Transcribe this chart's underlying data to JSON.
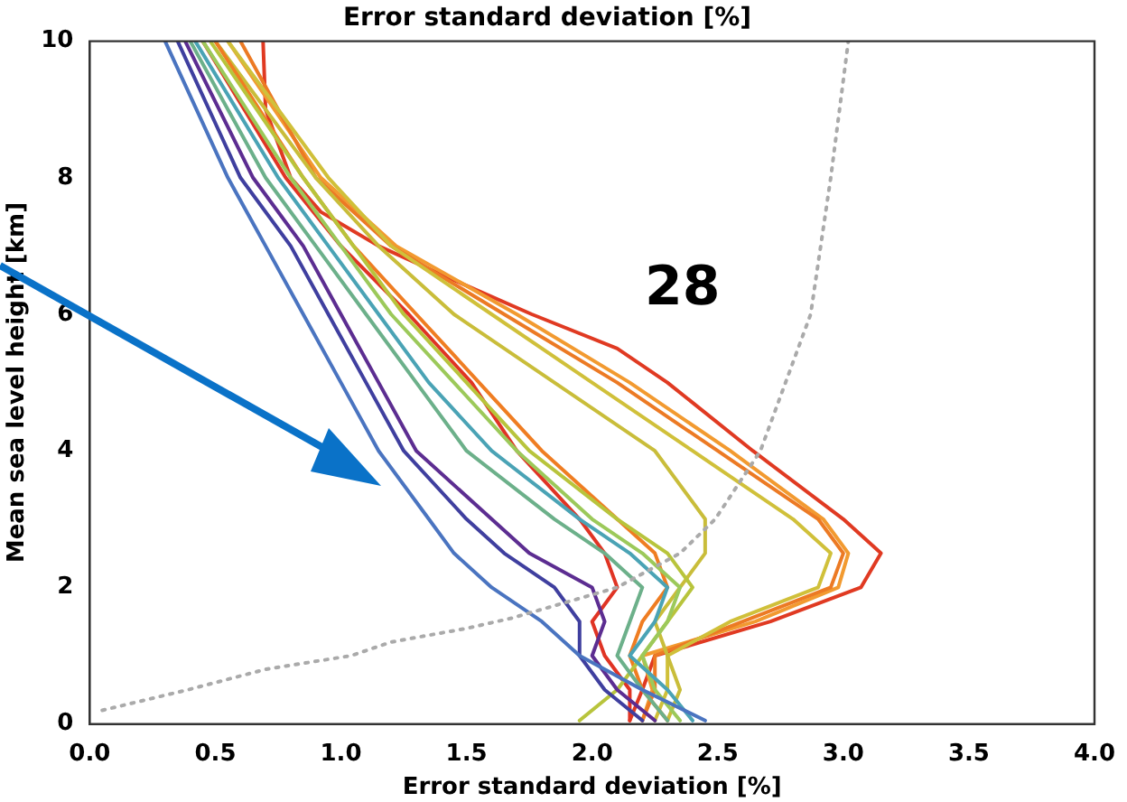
{
  "chart_data": {
    "type": "line",
    "title": "Error standard deviation [%]",
    "xlabel": "Error standard deviation [%]",
    "ylabel": "Mean sea level height [km]",
    "annotations": [
      "28"
    ],
    "xlim": [
      0,
      4
    ],
    "xticks": [
      {
        "value": 0,
        "label": "0.0"
      },
      {
        "value": 0.5,
        "label": "0.5"
      },
      {
        "value": 1,
        "label": "1.0"
      },
      {
        "value": 1.5,
        "label": "1.5"
      },
      {
        "value": 2,
        "label": "2.0"
      },
      {
        "value": 2.5,
        "label": "2.5"
      },
      {
        "value": 3,
        "label": "3.0"
      },
      {
        "value": 3.5,
        "label": "3.5"
      },
      {
        "value": 4,
        "label": "4.0"
      }
    ],
    "ylim": [
      0,
      10
    ],
    "yticks": [
      0,
      2,
      4,
      6,
      8,
      10
    ],
    "grid": false,
    "legend": false,
    "marker": "none",
    "line_style": "solid",
    "series": [
      {
        "color": "#aaaaaa",
        "line_style": "dotted",
        "x": [
          0.05,
          0.39,
          0.7,
          1.04,
          1.2,
          1.5,
          1.68,
          2.1,
          2.35,
          2.49,
          2.67,
          2.87,
          2.95,
          3.02
        ],
        "values": [
          0.2,
          0.5,
          0.8,
          1,
          1.2,
          1.4,
          1.55,
          2,
          2.5,
          3,
          4,
          6,
          8,
          10
        ]
      },
      {
        "color": "#4a74c0",
        "x": [
          0.3,
          0.55,
          0.7,
          0.85,
          1.0,
          1.15,
          1.35,
          1.45,
          1.6,
          1.8,
          1.95,
          2.2,
          2.45
        ],
        "values": [
          10,
          8,
          7,
          6,
          5,
          4,
          3,
          2.5,
          2,
          1.5,
          1,
          0.5,
          0.05
        ]
      },
      {
        "color": "#3f3f9f",
        "x": [
          0.35,
          0.6,
          0.8,
          0.95,
          1.1,
          1.25,
          1.5,
          1.65,
          1.85,
          1.95,
          1.95,
          2.05,
          2.2
        ],
        "values": [
          10,
          8,
          7,
          6,
          5,
          4,
          3,
          2.5,
          2,
          1.5,
          1,
          0.5,
          0.05
        ]
      },
      {
        "color": "#5c2d91",
        "x": [
          0.38,
          0.65,
          0.85,
          1.0,
          1.15,
          1.3,
          1.6,
          1.75,
          2.0,
          2.05,
          2.0,
          2.1,
          2.25
        ],
        "values": [
          10,
          8,
          7,
          6,
          5,
          4,
          3,
          2.5,
          2,
          1.5,
          1,
          0.5,
          0.05
        ]
      },
      {
        "color": "#4aa3b5",
        "x": [
          0.42,
          0.75,
          0.95,
          1.15,
          1.35,
          1.6,
          1.95,
          2.15,
          2.3,
          2.25,
          2.15,
          2.3,
          2.4
        ],
        "values": [
          10,
          8,
          7,
          6,
          5,
          4,
          3,
          2.5,
          2,
          1.5,
          1,
          0.5,
          0.05
        ]
      },
      {
        "color": "#6cb08a",
        "x": [
          0.4,
          0.7,
          0.9,
          1.1,
          1.3,
          1.5,
          1.85,
          2.05,
          2.2,
          2.15,
          2.1,
          2.2,
          2.3
        ],
        "values": [
          10,
          8,
          7,
          6,
          5,
          4,
          3,
          2.5,
          2,
          1.5,
          1,
          0.5,
          0.05
        ]
      },
      {
        "color": "#9cc95a",
        "x": [
          0.45,
          0.8,
          1.0,
          1.2,
          1.45,
          1.7,
          2.0,
          2.2,
          2.35,
          2.3,
          2.2,
          2.25,
          2.35
        ],
        "values": [
          10,
          8,
          7,
          6,
          5,
          4,
          3,
          2.5,
          2,
          1.5,
          1,
          0.5,
          0.05
        ]
      },
      {
        "color": "#b8c43c",
        "x": [
          0.48,
          0.85,
          1.05,
          1.25,
          1.5,
          1.75,
          2.1,
          2.3,
          2.4,
          2.3,
          2.2,
          2.1,
          1.95
        ],
        "values": [
          10,
          8,
          7,
          6,
          5,
          4,
          3,
          2.5,
          2,
          1.5,
          1,
          0.5,
          0.05
        ]
      },
      {
        "color": "#e03424",
        "x": [
          0.45,
          0.78,
          1.0,
          1.27,
          1.52,
          1.7,
          1.95,
          2.05,
          2.1,
          2.0,
          2.05,
          2.15,
          2.15
        ],
        "values": [
          10,
          8,
          7,
          6,
          5,
          4,
          3,
          2.5,
          2,
          1.5,
          1,
          0.5,
          0.05
        ]
      },
      {
        "color": "#ef7d22",
        "x": [
          0.5,
          0.85,
          1.05,
          1.3,
          1.55,
          1.8,
          2.1,
          2.25,
          2.3,
          2.2,
          2.15,
          2.2,
          2.3
        ],
        "values": [
          10,
          8,
          7,
          6,
          5,
          4,
          3,
          2.5,
          2,
          1.5,
          1,
          0.5,
          0.05
        ]
      },
      {
        "color": "#c9bd3a",
        "x": [
          0.5,
          0.9,
          1.15,
          1.45,
          1.85,
          2.25,
          2.45,
          2.45,
          2.35,
          2.25,
          2.3,
          2.35,
          2.3
        ],
        "values": [
          10,
          8,
          7,
          6,
          5,
          4,
          3,
          2.5,
          2,
          1.5,
          1,
          0.5,
          0.05
        ]
      },
      {
        "color": "#d0c03a",
        "x": [
          0.55,
          0.95,
          1.2,
          1.6,
          2.0,
          2.4,
          2.8,
          2.95,
          2.9,
          2.55,
          2.3,
          2.3,
          2.25
        ],
        "values": [
          10,
          8,
          7,
          6,
          5,
          4,
          3,
          2.5,
          2,
          1.5,
          1,
          0.5,
          0.05
        ]
      },
      {
        "color": "#ec7a24",
        "x": [
          0.6,
          0.9,
          1.2,
          1.65,
          2.1,
          2.5,
          2.9,
          3.0,
          2.95,
          2.6,
          2.25,
          2.25,
          2.2
        ],
        "values": [
          10,
          8,
          7,
          6,
          5,
          4,
          3,
          2.5,
          2,
          1.5,
          1,
          0.5,
          0.05
        ]
      },
      {
        "color": "#f29a30",
        "x": [
          0.55,
          0.92,
          1.22,
          1.7,
          2.15,
          2.55,
          2.92,
          3.02,
          2.98,
          2.65,
          2.2,
          2.24,
          2.2
        ],
        "values": [
          10,
          8,
          7,
          6,
          5,
          4,
          3,
          2.5,
          2,
          1.5,
          1,
          0.5,
          0.05
        ]
      },
      {
        "color": "#e03a22",
        "x": [
          0.69,
          0.7,
          0.8,
          0.92,
          1.15,
          1.45,
          1.76,
          2.1,
          2.3,
          2.64,
          3.0,
          3.15,
          3.07,
          2.71,
          2.25,
          2.2,
          2.15
        ],
        "values": [
          10,
          9,
          8,
          7.5,
          7,
          6.5,
          6,
          5.5,
          5,
          4,
          3,
          2.5,
          2,
          1.5,
          1,
          0.5,
          0.05
        ]
      }
    ]
  }
}
